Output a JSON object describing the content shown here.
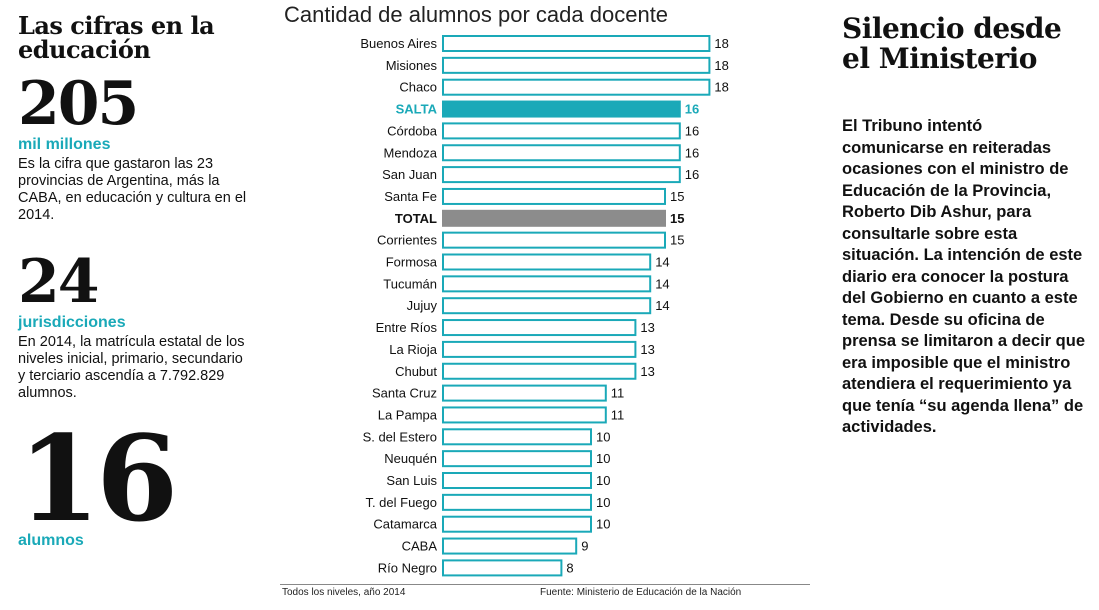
{
  "left": {
    "title": "Las cifras en la educación",
    "stats": [
      {
        "number": "205",
        "unit": "mil millones",
        "text": "Es la cifra que gastaron las 23 provincias de Argentina, más la CABA, en educación y cultura en el 2014."
      },
      {
        "number": "24",
        "unit": "jurisdicciones",
        "text": "En 2014, la matrícula estatal de los niveles inicial, primario, secundario y terciario ascendía a 7.792.829 alumnos."
      },
      {
        "number": "16",
        "unit": "alumnos"
      }
    ]
  },
  "chart_data": {
    "type": "bar",
    "orientation": "horizontal",
    "title": "Cantidad de alumnos por cada docente",
    "categories": [
      "Buenos Aires",
      "Misiones",
      "Chaco",
      "SALTA",
      "Córdoba",
      "Mendoza",
      "San Juan",
      "Santa Fe",
      "TOTAL",
      "Corrientes",
      "Formosa",
      "Tucumán",
      "Jujuy",
      "Entre Ríos",
      "La Rioja",
      "Chubut",
      "Santa Cruz",
      "La Pampa",
      "S. del Estero",
      "Neuquén",
      "San Luis",
      "T. del Fuego",
      "Catamarca",
      "CABA",
      "Río Negro"
    ],
    "values": [
      18,
      18,
      18,
      16,
      16,
      16,
      16,
      15,
      15,
      15,
      14,
      14,
      14,
      13,
      13,
      13,
      11,
      11,
      10,
      10,
      10,
      10,
      10,
      9,
      8
    ],
    "highlight": {
      "SALTA": "#1aa9b8",
      "TOTAL": "#8c8c8c"
    },
    "bar_outline_color": "#1aa9b8",
    "footnote": "Todos los niveles, año 2014",
    "source": "Fuente: Ministerio de Educación de la Nación"
  },
  "right": {
    "title": "Silencio desde el Ministerio",
    "body": "El Tribuno intentó comunicarse en reiteradas ocasiones con el ministro de Educación de la Provincia, Roberto Dib Ashur, para consultarle sobre esta situación. La intención de este diario era conocer la postura del Gobierno en cuanto a este tema. Desde su oficina de prensa se limitaron a decir que era imposible que el ministro atendiera el requerimiento ya que tenía “su agenda llena” de actividades."
  }
}
